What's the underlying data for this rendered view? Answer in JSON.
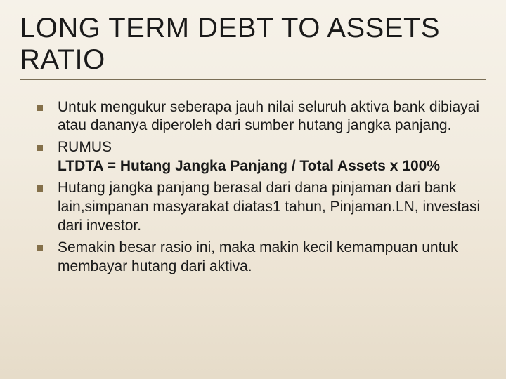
{
  "slide": {
    "title": "LONG TERM DEBT TO ASSETS RATIO",
    "bullets": [
      {
        "text": "Untuk mengukur seberapa jauh nilai seluruh aktiva bank dibiayai atau dananya diperoleh dari sumber hutang jangka panjang."
      },
      {
        "text": "RUMUS",
        "formula": "LTDTA = Hutang Jangka Panjang / Total Assets x 100%"
      },
      {
        "text": "Hutang jangka panjang berasal dari dana pinjaman dari bank lain,simpanan masyarakat diatas1 tahun, Pinjaman.LN, investasi dari investor."
      },
      {
        "text": "Semakin besar rasio ini, maka makin kecil kemampuan untuk membayar hutang dari aktiva."
      }
    ],
    "colors": {
      "bullet_marker": "#84704a",
      "underline": "#7a6e56",
      "text": "#1a1a1a",
      "bg_top": "#f6f2e9",
      "bg_bottom": "#e6dcc9"
    },
    "fonts": {
      "title_size_pt": 40,
      "body_size_pt": 21,
      "family": "Arial"
    }
  }
}
